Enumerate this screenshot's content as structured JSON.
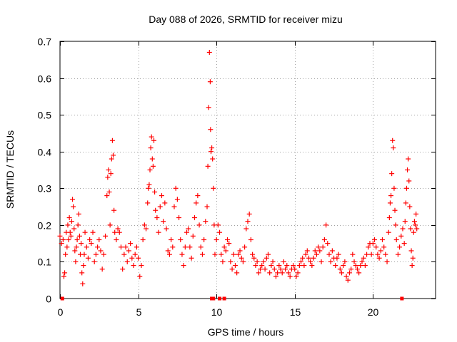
{
  "chart_data": {
    "type": "scatter",
    "title": "Day 088 of 2026, SRMTID for receiver mizu",
    "xlabel": "GPS time / hours",
    "ylabel": "SRMTID / TECUs",
    "xlim": [
      0,
      24
    ],
    "ylim": [
      0,
      0.7
    ],
    "x_ticks": [
      0,
      5,
      10,
      15,
      20
    ],
    "x_tick_labels": [
      "0",
      "5",
      "10",
      "15",
      "20"
    ],
    "y_ticks": [
      0,
      0.1,
      0.2,
      0.3,
      0.4,
      0.5,
      0.6,
      0.7
    ],
    "y_tick_labels": [
      "0",
      "0.1",
      "0.2",
      "0.3",
      "0.4",
      "0.5",
      "0.6",
      "0.7"
    ],
    "grid": true,
    "marker": "plus",
    "series": [
      {
        "name": "SRMTID",
        "color": "#ff0000",
        "points": [
          [
            0.0,
            0.17
          ],
          [
            0.1,
            0.15
          ],
          [
            0.2,
            0.16
          ],
          [
            0.25,
            0.06
          ],
          [
            0.3,
            0.07
          ],
          [
            0.35,
            0.12
          ],
          [
            0.4,
            0.18
          ],
          [
            0.45,
            0.14
          ],
          [
            0.5,
            0.2
          ],
          [
            0.55,
            0.16
          ],
          [
            0.6,
            0.22
          ],
          [
            0.65,
            0.18
          ],
          [
            0.7,
            0.17
          ],
          [
            0.75,
            0.21
          ],
          [
            0.8,
            0.27
          ],
          [
            0.85,
            0.25
          ],
          [
            0.9,
            0.19
          ],
          [
            0.95,
            0.13
          ],
          [
            1.0,
            0.1
          ],
          [
            1.05,
            0.14
          ],
          [
            1.1,
            0.16
          ],
          [
            1.15,
            0.2
          ],
          [
            1.2,
            0.23
          ],
          [
            1.25,
            0.17
          ],
          [
            1.3,
            0.12
          ],
          [
            1.35,
            0.15
          ],
          [
            1.4,
            0.07
          ],
          [
            1.45,
            0.04
          ],
          [
            1.5,
            0.09
          ],
          [
            1.55,
            0.12
          ],
          [
            1.6,
            0.18
          ],
          [
            1.7,
            0.14
          ],
          [
            1.8,
            0.11
          ],
          [
            1.9,
            0.16
          ],
          [
            2.0,
            0.15
          ],
          [
            2.1,
            0.18
          ],
          [
            2.2,
            0.1
          ],
          [
            2.3,
            0.12
          ],
          [
            2.4,
            0.14
          ],
          [
            2.5,
            0.16
          ],
          [
            2.6,
            0.13
          ],
          [
            2.7,
            0.08
          ],
          [
            2.8,
            0.12
          ],
          [
            2.9,
            0.17
          ],
          [
            3.0,
            0.28
          ],
          [
            3.05,
            0.33
          ],
          [
            3.1,
            0.35
          ],
          [
            3.15,
            0.29
          ],
          [
            3.2,
            0.2
          ],
          [
            3.25,
            0.34
          ],
          [
            3.3,
            0.38
          ],
          [
            3.35,
            0.43
          ],
          [
            3.4,
            0.39
          ],
          [
            3.45,
            0.24
          ],
          [
            3.5,
            0.18
          ],
          [
            3.6,
            0.16
          ],
          [
            3.7,
            0.19
          ],
          [
            3.8,
            0.18
          ],
          [
            3.9,
            0.14
          ],
          [
            4.0,
            0.08
          ],
          [
            4.1,
            0.12
          ],
          [
            4.2,
            0.14
          ],
          [
            4.3,
            0.1
          ],
          [
            4.4,
            0.13
          ],
          [
            4.5,
            0.15
          ],
          [
            4.6,
            0.11
          ],
          [
            4.7,
            0.09
          ],
          [
            4.8,
            0.12
          ],
          [
            4.9,
            0.14
          ],
          [
            5.0,
            0.11
          ],
          [
            5.1,
            0.06
          ],
          [
            5.2,
            0.09
          ],
          [
            5.3,
            0.16
          ],
          [
            5.4,
            0.2
          ],
          [
            5.5,
            0.19
          ],
          [
            5.6,
            0.26
          ],
          [
            5.65,
            0.3
          ],
          [
            5.7,
            0.31
          ],
          [
            5.75,
            0.35
          ],
          [
            5.8,
            0.41
          ],
          [
            5.85,
            0.44
          ],
          [
            5.9,
            0.38
          ],
          [
            5.95,
            0.36
          ],
          [
            6.0,
            0.43
          ],
          [
            6.05,
            0.29
          ],
          [
            6.1,
            0.24
          ],
          [
            6.2,
            0.22
          ],
          [
            6.3,
            0.18
          ],
          [
            6.4,
            0.25
          ],
          [
            6.5,
            0.28
          ],
          [
            6.6,
            0.21
          ],
          [
            6.7,
            0.26
          ],
          [
            6.8,
            0.19
          ],
          [
            6.9,
            0.13
          ],
          [
            7.0,
            0.12
          ],
          [
            7.1,
            0.16
          ],
          [
            7.2,
            0.14
          ],
          [
            7.3,
            0.25
          ],
          [
            7.4,
            0.3
          ],
          [
            7.5,
            0.27
          ],
          [
            7.6,
            0.22
          ],
          [
            7.7,
            0.16
          ],
          [
            7.8,
            0.12
          ],
          [
            7.9,
            0.09
          ],
          [
            8.0,
            0.14
          ],
          [
            8.1,
            0.18
          ],
          [
            8.2,
            0.19
          ],
          [
            8.3,
            0.14
          ],
          [
            8.4,
            0.11
          ],
          [
            8.5,
            0.17
          ],
          [
            8.6,
            0.22
          ],
          [
            8.7,
            0.26
          ],
          [
            8.8,
            0.28
          ],
          [
            8.9,
            0.2
          ],
          [
            9.0,
            0.14
          ],
          [
            9.1,
            0.12
          ],
          [
            9.2,
            0.16
          ],
          [
            9.3,
            0.21
          ],
          [
            9.4,
            0.25
          ],
          [
            9.45,
            0.36
          ],
          [
            9.5,
            0.52
          ],
          [
            9.55,
            0.67
          ],
          [
            9.6,
            0.59
          ],
          [
            9.62,
            0.46
          ],
          [
            9.65,
            0.4
          ],
          [
            9.7,
            0.41
          ],
          [
            9.75,
            0.38
          ],
          [
            9.8,
            0.3
          ],
          [
            9.85,
            0.2
          ],
          [
            9.9,
            0.12
          ],
          [
            10.0,
            0.16
          ],
          [
            10.1,
            0.2
          ],
          [
            10.2,
            0.18
          ],
          [
            10.3,
            0.12
          ],
          [
            10.4,
            0.1
          ],
          [
            10.5,
            0.14
          ],
          [
            10.6,
            0.13
          ],
          [
            10.7,
            0.16
          ],
          [
            10.8,
            0.15
          ],
          [
            10.9,
            0.1
          ],
          [
            11.0,
            0.08
          ],
          [
            11.1,
            0.12
          ],
          [
            11.2,
            0.09
          ],
          [
            11.3,
            0.07
          ],
          [
            11.4,
            0.12
          ],
          [
            11.5,
            0.13
          ],
          [
            11.6,
            0.11
          ],
          [
            11.7,
            0.1
          ],
          [
            11.8,
            0.14
          ],
          [
            11.9,
            0.19
          ],
          [
            12.0,
            0.21
          ],
          [
            12.1,
            0.23
          ],
          [
            12.2,
            0.16
          ],
          [
            12.3,
            0.12
          ],
          [
            12.4,
            0.11
          ],
          [
            12.5,
            0.09
          ],
          [
            12.6,
            0.1
          ],
          [
            12.7,
            0.07
          ],
          [
            12.8,
            0.08
          ],
          [
            12.9,
            0.09
          ],
          [
            13.0,
            0.1
          ],
          [
            13.1,
            0.08
          ],
          [
            13.2,
            0.11
          ],
          [
            13.3,
            0.12
          ],
          [
            13.4,
            0.07
          ],
          [
            13.5,
            0.09
          ],
          [
            13.6,
            0.1
          ],
          [
            13.7,
            0.08
          ],
          [
            13.8,
            0.06
          ],
          [
            13.9,
            0.07
          ],
          [
            14.0,
            0.09
          ],
          [
            14.1,
            0.08
          ],
          [
            14.2,
            0.07
          ],
          [
            14.3,
            0.1
          ],
          [
            14.4,
            0.08
          ],
          [
            14.5,
            0.09
          ],
          [
            14.6,
            0.07
          ],
          [
            14.7,
            0.06
          ],
          [
            14.8,
            0.08
          ],
          [
            14.9,
            0.09
          ],
          [
            15.0,
            0.08
          ],
          [
            15.1,
            0.06
          ],
          [
            15.2,
            0.07
          ],
          [
            15.3,
            0.09
          ],
          [
            15.4,
            0.1
          ],
          [
            15.5,
            0.11
          ],
          [
            15.6,
            0.09
          ],
          [
            15.7,
            0.12
          ],
          [
            15.8,
            0.13
          ],
          [
            15.9,
            0.11
          ],
          [
            16.0,
            0.1
          ],
          [
            16.1,
            0.09
          ],
          [
            16.2,
            0.11
          ],
          [
            16.3,
            0.13
          ],
          [
            16.4,
            0.12
          ],
          [
            16.5,
            0.14
          ],
          [
            16.6,
            0.13
          ],
          [
            16.7,
            0.1
          ],
          [
            16.8,
            0.14
          ],
          [
            16.9,
            0.16
          ],
          [
            17.0,
            0.2
          ],
          [
            17.1,
            0.15
          ],
          [
            17.2,
            0.12
          ],
          [
            17.3,
            0.1
          ],
          [
            17.4,
            0.13
          ],
          [
            17.5,
            0.11
          ],
          [
            17.6,
            0.09
          ],
          [
            17.7,
            0.11
          ],
          [
            17.8,
            0.12
          ],
          [
            17.9,
            0.08
          ],
          [
            18.0,
            0.07
          ],
          [
            18.1,
            0.09
          ],
          [
            18.2,
            0.1
          ],
          [
            18.3,
            0.06
          ],
          [
            18.4,
            0.05
          ],
          [
            18.5,
            0.07
          ],
          [
            18.6,
            0.08
          ],
          [
            18.7,
            0.12
          ],
          [
            18.8,
            0.1
          ],
          [
            18.9,
            0.09
          ],
          [
            19.0,
            0.08
          ],
          [
            19.1,
            0.07
          ],
          [
            19.2,
            0.09
          ],
          [
            19.3,
            0.1
          ],
          [
            19.4,
            0.11
          ],
          [
            19.5,
            0.09
          ],
          [
            19.6,
            0.12
          ],
          [
            19.7,
            0.14
          ],
          [
            19.8,
            0.15
          ],
          [
            19.9,
            0.12
          ],
          [
            20.0,
            0.15
          ],
          [
            20.1,
            0.16
          ],
          [
            20.2,
            0.14
          ],
          [
            20.3,
            0.12
          ],
          [
            20.4,
            0.11
          ],
          [
            20.5,
            0.13
          ],
          [
            20.6,
            0.16
          ],
          [
            20.7,
            0.14
          ],
          [
            20.8,
            0.12
          ],
          [
            20.9,
            0.1
          ],
          [
            21.0,
            0.18
          ],
          [
            21.05,
            0.22
          ],
          [
            21.1,
            0.26
          ],
          [
            21.15,
            0.28
          ],
          [
            21.2,
            0.34
          ],
          [
            21.25,
            0.43
          ],
          [
            21.3,
            0.41
          ],
          [
            21.35,
            0.3
          ],
          [
            21.4,
            0.24
          ],
          [
            21.45,
            0.2
          ],
          [
            21.5,
            0.16
          ],
          [
            21.6,
            0.12
          ],
          [
            21.7,
            0.14
          ],
          [
            21.8,
            0.17
          ],
          [
            21.9,
            0.19
          ],
          [
            22.0,
            0.15
          ],
          [
            22.05,
            0.21
          ],
          [
            22.1,
            0.26
          ],
          [
            22.15,
            0.3
          ],
          [
            22.2,
            0.35
          ],
          [
            22.25,
            0.38
          ],
          [
            22.3,
            0.32
          ],
          [
            22.35,
            0.25
          ],
          [
            22.4,
            0.19
          ],
          [
            22.45,
            0.13
          ],
          [
            22.5,
            0.09
          ],
          [
            22.55,
            0.11
          ],
          [
            22.6,
            0.18
          ],
          [
            22.65,
            0.21
          ],
          [
            22.7,
            0.2
          ],
          [
            22.75,
            0.23
          ],
          [
            22.8,
            0.19
          ]
        ],
        "zero_points": [
          0.15,
          9.7,
          9.8,
          10.2,
          10.5,
          21.85
        ]
      }
    ]
  }
}
